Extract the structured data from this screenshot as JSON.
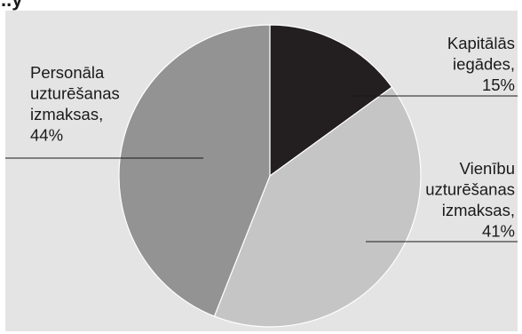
{
  "chart_data": {
    "type": "pie",
    "slices": [
      {
        "name": "Kapitālās iegādes",
        "value": 15,
        "color": "#231f20"
      },
      {
        "name": "Vienību uzturēšanas izmaksas",
        "value": 41,
        "color": "#c5c5c5"
      },
      {
        "name": "Personāla uzturēšanas izmaksas",
        "value": 44,
        "color": "#939393"
      }
    ],
    "labels": [
      {
        "lines": [
          "Kapitālās",
          "iegādes,",
          "15%"
        ]
      },
      {
        "lines": [
          "Vienību",
          "uzturēšanas",
          "izmaksas,",
          "41%"
        ]
      },
      {
        "lines": [
          "Personāla",
          "uzturēšanas",
          "izmaksas,",
          "44%"
        ]
      }
    ],
    "title": ""
  },
  "header_fragment": "..y"
}
